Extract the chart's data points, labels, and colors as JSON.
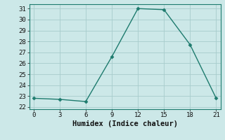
{
  "x": [
    0,
    3,
    6,
    9,
    12,
    15,
    18,
    21
  ],
  "y": [
    22.8,
    22.7,
    22.5,
    26.6,
    31.0,
    30.9,
    27.7,
    22.8
  ],
  "line_color": "#1e7b6e",
  "marker": "D",
  "marker_size": 2.5,
  "bg_color": "#cce8e8",
  "grid_color": "#a8cccc",
  "xlabel": "Humidex (Indice chaleur)",
  "xlim": [
    -0.5,
    21.5
  ],
  "ylim": [
    21.8,
    31.4
  ],
  "xticks": [
    0,
    3,
    6,
    9,
    12,
    15,
    18,
    21
  ],
  "yticks": [
    22,
    23,
    24,
    25,
    26,
    27,
    28,
    29,
    30,
    31
  ],
  "label_fontsize": 7.5,
  "tick_fontsize": 6.5,
  "spine_color": "#1e7b6e",
  "linewidth": 1.0
}
